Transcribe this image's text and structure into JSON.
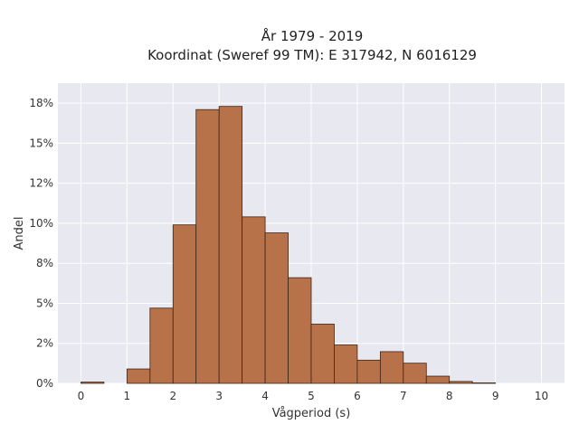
{
  "chart_data": {
    "type": "bar",
    "title_lines": [
      "År 1979 - 2019",
      "Koordinat (Sweref 99 TM): E 317942, N 6016129"
    ],
    "xlabel": "Vågperiod (s)",
    "ylabel": "Andel",
    "xlim": [
      -0.5,
      10.5
    ],
    "ylim": [
      0,
      0.1875
    ],
    "x_ticks": [
      0,
      1,
      2,
      3,
      4,
      5,
      6,
      7,
      8,
      9,
      10
    ],
    "x_tick_labels": [
      "0",
      "1",
      "2",
      "3",
      "4",
      "5",
      "6",
      "7",
      "8",
      "9",
      "10"
    ],
    "y_ticks": [
      0,
      0.025,
      0.05,
      0.075,
      0.1,
      0.125,
      0.15,
      0.175
    ],
    "y_tick_labels": [
      "0%",
      "2%",
      "5%",
      "8%",
      "10%",
      "12%",
      "15%",
      "18%"
    ],
    "bin_width": 0.5,
    "bin_starts": [
      0,
      0.5,
      1.0,
      1.5,
      2.0,
      2.5,
      3.0,
      3.5,
      4.0,
      4.5,
      5.0,
      5.5,
      6.0,
      6.5,
      7.0,
      7.5,
      8.0,
      8.5,
      9.0,
      9.5
    ],
    "values": [
      0.0008,
      0,
      0.009,
      0.047,
      0.099,
      0.171,
      0.173,
      0.104,
      0.094,
      0.066,
      0.037,
      0.024,
      0.0145,
      0.0198,
      0.0126,
      0.0045,
      0.0012,
      0.0003,
      0,
      0
    ],
    "grid": true,
    "colors": {
      "bar_fill": "#b8724a",
      "bar_stroke": "#3d2516",
      "plot_bg": "#e8e8f0",
      "grid": "#ffffff"
    }
  }
}
